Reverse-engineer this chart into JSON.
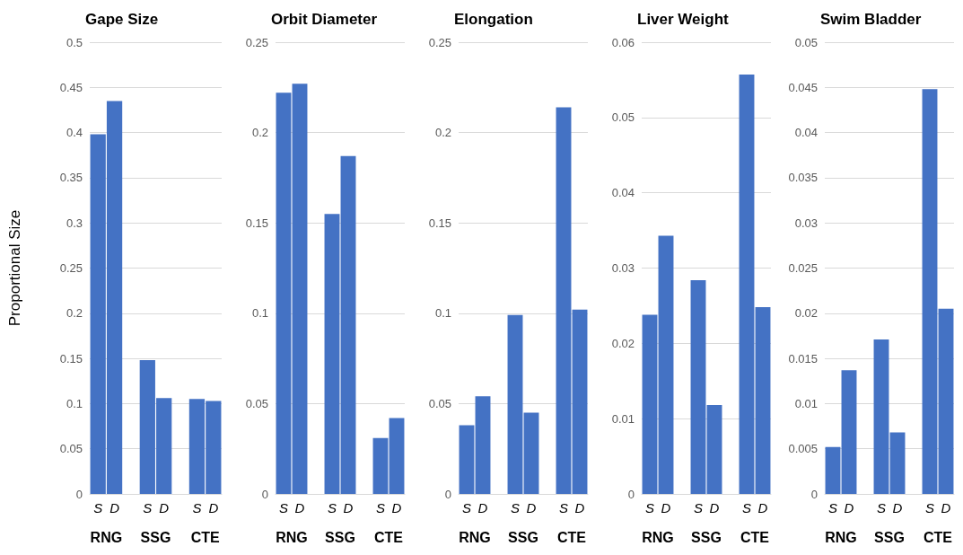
{
  "chart_data": [
    {
      "type": "bar",
      "title": "Gape Size",
      "ylabel": "Proportional Size",
      "categories": [
        "S",
        "D",
        null,
        "S",
        "D",
        null,
        "S",
        "D"
      ],
      "values": [
        0.398,
        0.435,
        null,
        0.148,
        0.106,
        null,
        0.105,
        0.103
      ],
      "color": "#4472c4",
      "ylim": [
        0,
        0.5
      ],
      "yticks": [
        0,
        0.05,
        0.1,
        0.15,
        0.2,
        0.25,
        0.3,
        0.35,
        0.4,
        0.45,
        0.5
      ],
      "grid": "y",
      "annotations": [
        "RNG",
        "SSG",
        "CTE"
      ]
    },
    {
      "type": "bar",
      "title": "Orbit Diameter",
      "categories": [
        "S",
        "D",
        null,
        "S",
        "D",
        null,
        "S",
        "D"
      ],
      "values": [
        0.222,
        0.227,
        null,
        0.155,
        0.187,
        null,
        0.031,
        0.042
      ],
      "color": "#4472c4",
      "ylim": [
        0,
        0.25
      ],
      "yticks": [
        0,
        0.05,
        0.1,
        0.15,
        0.2,
        0.25
      ],
      "grid": "y",
      "annotations": [
        "RNG",
        "SSG",
        "CTE"
      ]
    },
    {
      "type": "bar",
      "title": "Elongation",
      "categories": [
        "S",
        "D",
        null,
        "S",
        "D",
        null,
        "S",
        "D"
      ],
      "values": [
        0.038,
        0.054,
        null,
        0.099,
        0.045,
        null,
        0.214,
        0.102
      ],
      "color": "#4472c4",
      "ylim": [
        0,
        0.25
      ],
      "yticks": [
        0,
        0.05,
        0.1,
        0.15,
        0.2,
        0.25
      ],
      "grid": "y",
      "annotations": [
        "RNG",
        "SSG",
        "CTE"
      ]
    },
    {
      "type": "bar",
      "title": "Liver Weight",
      "categories": [
        "S",
        "D",
        null,
        "S",
        "D",
        null,
        "S",
        "D"
      ],
      "values": [
        0.0238,
        0.0343,
        null,
        0.0284,
        0.0118,
        null,
        0.0557,
        0.0248
      ],
      "color": "#4472c4",
      "ylim": [
        0,
        0.06
      ],
      "yticks": [
        0,
        0.01,
        0.02,
        0.03,
        0.04,
        0.05,
        0.06
      ],
      "grid": "y",
      "annotations": [
        "RNG",
        "SSG",
        "CTE"
      ]
    },
    {
      "type": "bar",
      "title": "Swim Bladder",
      "categories": [
        "S",
        "D",
        null,
        "S",
        "D",
        null,
        "S",
        "D"
      ],
      "values": [
        0.0052,
        0.0137,
        null,
        0.0171,
        0.0068,
        null,
        0.0448,
        0.0205
      ],
      "color": "#4472c4",
      "ylim": [
        0,
        0.05
      ],
      "yticks": [
        0,
        0.005,
        0.01,
        0.015,
        0.02,
        0.025,
        0.03,
        0.035,
        0.04,
        0.045,
        0.05
      ],
      "grid": "y",
      "annotations": [
        "RNG",
        "SSG",
        "CTE"
      ]
    }
  ]
}
